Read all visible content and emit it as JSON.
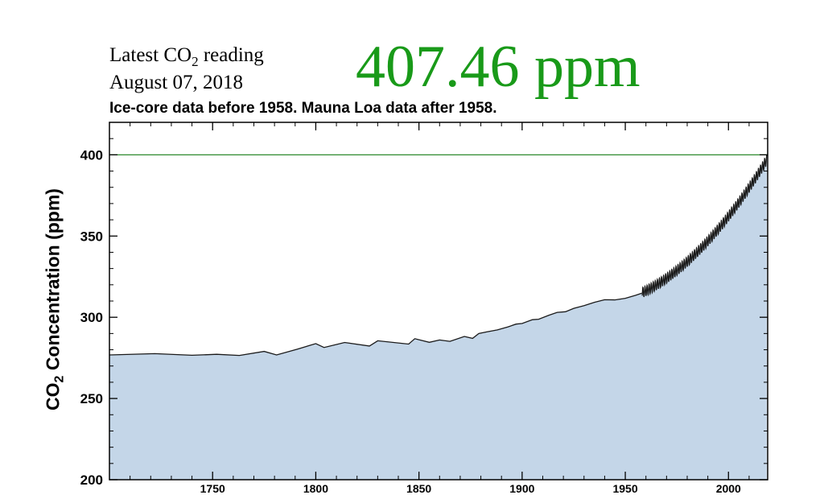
{
  "header": {
    "reading_label": "Latest CO",
    "reading_label_sub": "2",
    "reading_label_after": " reading",
    "reading_date": "August 07, 2018",
    "big_reading": "407.46 ppm",
    "big_reading_color": "#199a19"
  },
  "chart_data": {
    "type": "area",
    "title": "Ice-core data before 1958. Mauna Loa data after 1958.",
    "ylabel_main": "CO",
    "ylabel_sub": "2",
    "ylabel_after": " Concentration (ppm)",
    "xlabel": "",
    "xlim": [
      1700,
      2019
    ],
    "ylim": [
      200,
      420
    ],
    "xticks": [
      1750,
      1800,
      1850,
      1900,
      1950,
      2000
    ],
    "yticks": [
      200,
      250,
      300,
      350,
      400
    ],
    "reference_line": {
      "y": 400,
      "color": "#2e8b2e"
    },
    "fill_color": "#c4d6e8",
    "line_color": "#1a1a1a",
    "icecore_series": {
      "name": "Ice-core",
      "x": [
        1700,
        1722,
        1740,
        1752,
        1763,
        1775,
        1781,
        1791,
        1800,
        1804,
        1814,
        1826,
        1830,
        1845,
        1848,
        1855,
        1860,
        1865,
        1872,
        1876,
        1879,
        1883,
        1888,
        1893,
        1897,
        1900,
        1905,
        1908,
        1913,
        1917,
        1921,
        1925,
        1930,
        1935,
        1940,
        1945,
        1950,
        1955,
        1958
      ],
      "values": [
        276.8,
        277.6,
        276.6,
        277.2,
        276.5,
        279.0,
        276.8,
        280.3,
        283.8,
        281.4,
        284.5,
        282.3,
        285.5,
        283.5,
        286.8,
        284.6,
        286.0,
        285.2,
        288.2,
        287.0,
        290.0,
        291.0,
        292.2,
        294.0,
        295.8,
        296.2,
        298.5,
        298.8,
        301.3,
        303.0,
        303.4,
        305.5,
        307.2,
        309.2,
        310.8,
        310.7,
        311.7,
        313.5,
        314.8
      ]
    },
    "maunaloa_series": {
      "name": "Mauna Loa",
      "start_year": 1958.2,
      "end_year": 2018.6,
      "seasonal_amplitude": 3.1
    }
  }
}
